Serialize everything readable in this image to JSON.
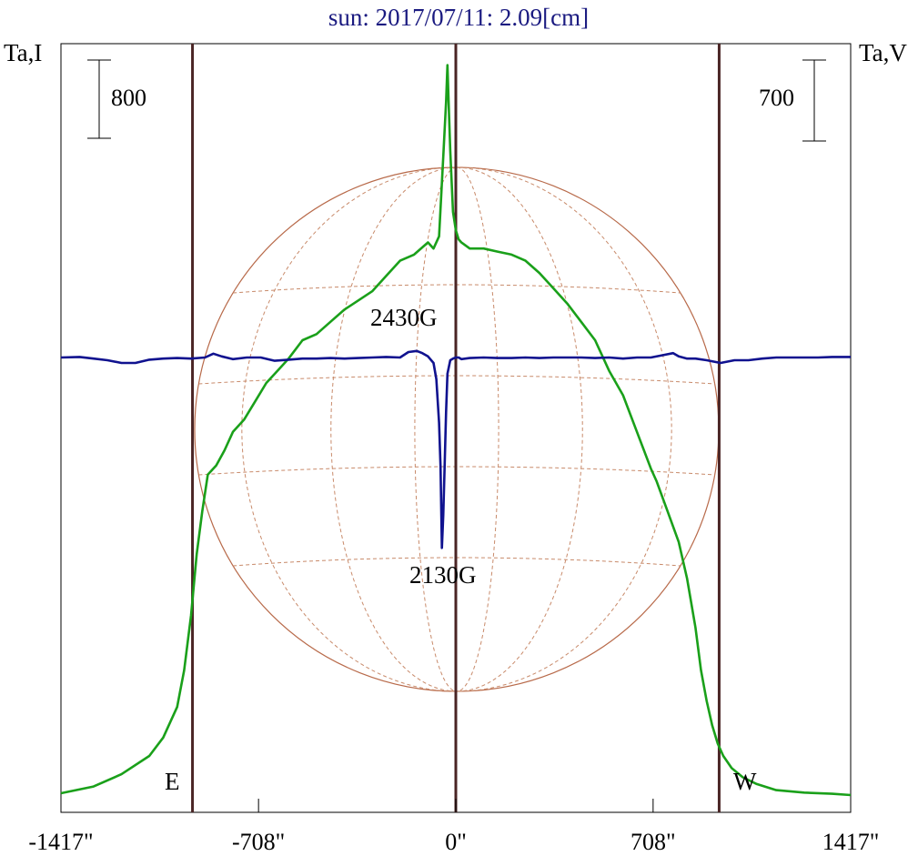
{
  "chart_data": {
    "type": "line",
    "title": "sun: 2017/07/11: 2.09[cm]",
    "ylabel_left": "Ta,I",
    "ylabel_right": "Ta,V",
    "x_ticks": [
      "-1417\"",
      "-708\"",
      "0\"",
      "708\"",
      "1417\""
    ],
    "x_tick_values": [
      -1417,
      -708,
      0,
      708,
      1417
    ],
    "xlim": [
      -1417,
      1417
    ],
    "scale_bar_left": "800",
    "scale_bar_right": "700",
    "limb_labels": {
      "east": "E",
      "west": "W"
    },
    "limb_positions": [
      -945,
      0,
      945
    ],
    "annotations": [
      {
        "text": "2430G",
        "x": -100,
        "y": 0.35
      },
      {
        "text": "2130G",
        "x": -100,
        "y": 0.73
      }
    ],
    "series": [
      {
        "color": "#1aa01a",
        "x": [
          -1417,
          -1300,
          -1200,
          -1100,
          -1050,
          -1000,
          -975,
          -950,
          -930,
          -910,
          -890,
          -860,
          -830,
          -800,
          -760,
          -720,
          -680,
          -640,
          -600,
          -550,
          -500,
          -450,
          -400,
          -350,
          -300,
          -250,
          -200,
          -150,
          -100,
          -80,
          -60,
          -45,
          -35,
          -30,
          -25,
          -20,
          -10,
          0,
          10,
          20,
          50,
          100,
          150,
          200,
          250,
          300,
          350,
          400,
          450,
          500,
          550,
          600,
          650,
          700,
          720,
          760,
          800,
          830,
          860,
          880,
          900,
          920,
          940,
          960,
          990,
          1030,
          1080,
          1150,
          1250,
          1350,
          1417
        ],
        "y": [
          9,
          20,
          40,
          70,
          100,
          150,
          210,
          300,
          400,
          470,
          530,
          545,
          570,
          600,
          620,
          650,
          680,
          700,
          720,
          750,
          760,
          780,
          800,
          815,
          830,
          855,
          880,
          890,
          910,
          900,
          920,
          1050,
          1140,
          1200,
          1130,
          1060,
          960,
          930,
          915,
          910,
          900,
          900,
          895,
          890,
          880,
          860,
          835,
          810,
          780,
          750,
          700,
          660,
          600,
          540,
          520,
          470,
          420,
          360,
          280,
          210,
          160,
          120,
          90,
          70,
          50,
          35,
          24,
          14,
          10,
          8,
          6
        ]
      },
      {
        "color": "#10128f",
        "x": [
          -1417,
          -1350,
          -1300,
          -1250,
          -1200,
          -1150,
          -1100,
          -1050,
          -1000,
          -950,
          -900,
          -870,
          -840,
          -800,
          -750,
          -700,
          -650,
          -600,
          -550,
          -500,
          -450,
          -400,
          -350,
          -300,
          -250,
          -200,
          -170,
          -140,
          -120,
          -100,
          -80,
          -70,
          -60,
          -55,
          -50,
          -45,
          -40,
          -35,
          -30,
          -20,
          -10,
          0,
          10,
          20,
          50,
          100,
          150,
          200,
          250,
          300,
          350,
          400,
          450,
          500,
          550,
          600,
          650,
          700,
          750,
          780,
          800,
          830,
          860,
          900,
          950,
          1000,
          1050,
          1100,
          1150,
          1200,
          1250,
          1300,
          1350,
          1417
        ],
        "y": [
          0,
          1,
          -2,
          -5,
          -10,
          -10,
          -4,
          -2,
          -1,
          -2,
          0,
          7,
          2,
          -3,
          0,
          0,
          -6,
          -4,
          -2,
          -2,
          -1,
          -2,
          -1,
          0,
          1,
          0,
          10,
          12,
          8,
          2,
          -10,
          -40,
          -120,
          -200,
          -350,
          -290,
          -200,
          -100,
          -30,
          -5,
          -2,
          0,
          0,
          -3,
          -1,
          0,
          -1,
          -1,
          0,
          -1,
          0,
          0,
          0,
          -1,
          0,
          -2,
          0,
          0,
          5,
          8,
          2,
          -2,
          -2,
          -5,
          -10,
          -5,
          -5,
          -2,
          0,
          0,
          0,
          0,
          1,
          1
        ]
      }
    ]
  }
}
